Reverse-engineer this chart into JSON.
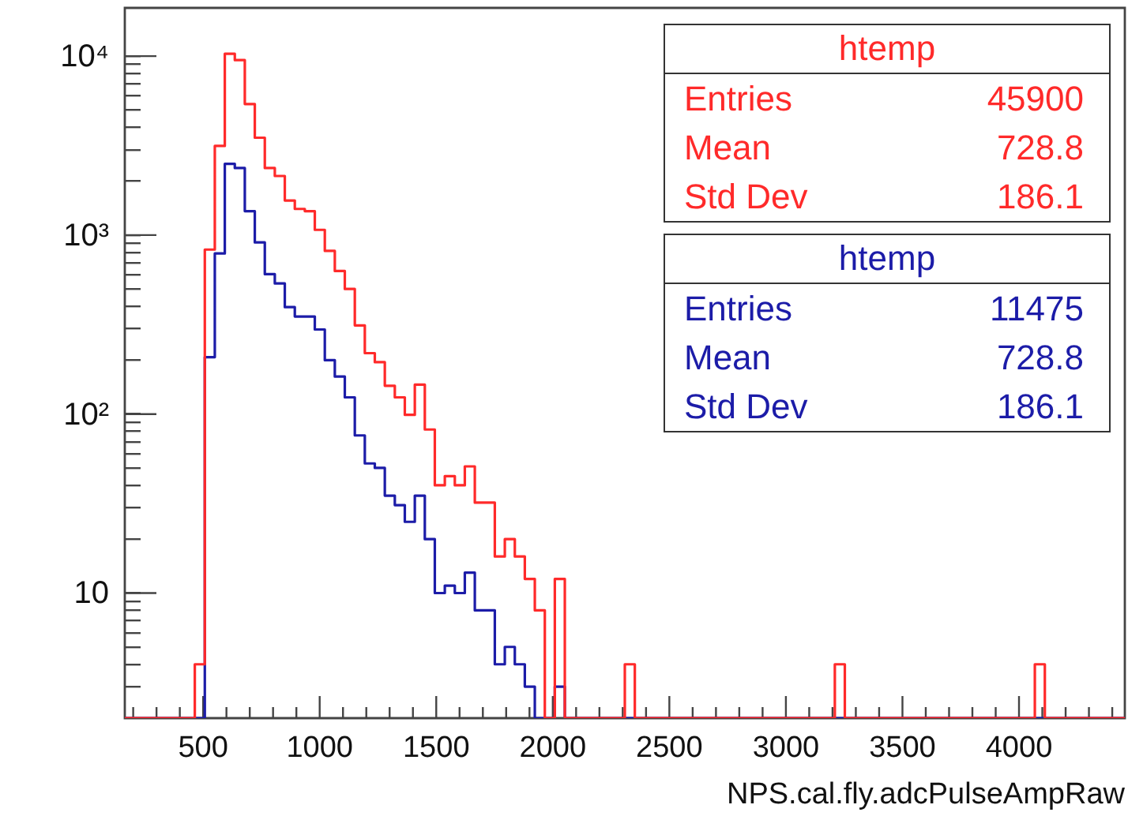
{
  "chart_data": {
    "type": "histogram",
    "xlabel": "NPS.cal.fly.adcPulseAmpRaw",
    "log": "y",
    "bins": [
      164,
      206.9,
      249.8,
      292.7,
      335.6,
      378.5,
      421.4,
      464.3,
      507.2,
      550.1,
      593,
      635.9,
      678.8,
      721.7,
      764.6,
      807.5,
      850.4,
      893.3,
      936.2,
      979.1,
      1022,
      1064.9,
      1107.8,
      1150.7,
      1193.6,
      1236.5,
      1279.4,
      1322.3,
      1365.2,
      1408.1,
      1451,
      1493.9,
      1536.8,
      1579.7,
      1622.6,
      1665.5,
      1708.4,
      1751.3,
      1794.2,
      1837.1,
      1880,
      1922.9,
      1965.8,
      2008.7,
      2051.6,
      2094.5,
      2137.4,
      2180.3,
      2223.2,
      2266.1,
      2309,
      2351.9,
      2394.8,
      2437.7,
      2480.6,
      2523.5,
      2566.4,
      2609.3,
      2652.2,
      2695.1,
      2738,
      2780.9,
      2823.8,
      2866.7,
      2909.6,
      2952.5,
      2995.4,
      3038.3,
      3081.2,
      3124.1,
      3167,
      3209.9,
      3252.8,
      3295.7,
      3338.6,
      3381.5,
      3424.4,
      3467.3,
      3510.2,
      3553.1,
      3596,
      3638.9,
      3681.8,
      3724.7,
      3767.6,
      3810.5,
      3853.4,
      3896.3,
      3939.2,
      3982.1,
      4025,
      4067.9,
      4110.8,
      4153.7,
      4196.6,
      4239.5,
      4282.4,
      4325.3,
      4368.2,
      4411.1,
      4454
    ],
    "series": [
      {
        "name": "htemp",
        "color": "#ff2a2a",
        "values": [
          null,
          null,
          null,
          null,
          null,
          null,
          null,
          4,
          830,
          3150,
          10300,
          9500,
          5400,
          3500,
          2370,
          2140,
          1560,
          1400,
          1360,
          1070,
          816,
          630,
          500,
          313,
          219,
          195,
          144,
          124,
          99,
          146,
          82,
          40,
          45,
          40,
          51,
          32,
          32,
          16,
          20,
          16,
          12,
          8,
          null,
          12,
          null,
          null,
          null,
          null,
          null,
          null,
          4,
          null,
          null,
          null,
          null,
          null,
          null,
          null,
          null,
          null,
          null,
          null,
          null,
          null,
          null,
          null,
          null,
          null,
          null,
          null,
          null,
          4,
          null,
          null,
          null,
          null,
          null,
          null,
          null,
          null,
          null,
          null,
          null,
          null,
          null,
          null,
          null,
          null,
          null,
          null,
          null,
          4,
          null,
          null,
          null,
          null,
          null,
          null,
          null,
          null
        ]
      },
      {
        "name": "htemp",
        "color": "#1c1ca8",
        "values": [
          null,
          null,
          null,
          null,
          null,
          null,
          null,
          null,
          208,
          790,
          2500,
          2370,
          1360,
          910,
          605,
          537,
          396,
          351,
          351,
          297,
          200,
          162,
          124,
          76,
          53,
          50,
          35,
          31,
          25,
          35,
          20,
          10,
          11,
          10,
          13,
          8,
          8,
          4,
          5,
          4,
          3,
          null,
          null,
          3,
          null,
          null,
          null,
          null,
          null,
          null,
          null,
          null,
          null,
          null,
          null,
          null,
          null,
          null,
          null,
          null,
          null,
          null,
          null,
          null,
          null,
          null,
          null,
          null,
          null,
          null,
          null,
          null,
          null,
          null,
          null,
          null,
          null,
          null,
          null,
          null,
          null,
          null,
          null,
          null,
          null,
          null,
          null,
          null,
          null,
          null,
          null,
          null,
          null,
          null,
          null,
          null,
          null,
          null,
          null,
          null
        ]
      }
    ],
    "xlim": [
      164,
      4454
    ],
    "xticks": [
      {
        "value": 200,
        "label": null
      },
      {
        "value": 300,
        "label": null
      },
      {
        "value": 400,
        "label": null
      },
      500,
      {
        "value": 600,
        "label": null
      },
      {
        "value": 700,
        "label": null
      },
      {
        "value": 800,
        "label": null
      },
      {
        "value": 900,
        "label": null
      },
      1000,
      {
        "value": 1100,
        "label": null
      },
      {
        "value": 1200,
        "label": null
      },
      {
        "value": 1300,
        "label": null
      },
      {
        "value": 1400,
        "label": null
      },
      1500,
      {
        "value": 1600,
        "label": null
      },
      {
        "value": 1700,
        "label": null
      },
      {
        "value": 1800,
        "label": null
      },
      {
        "value": 1900,
        "label": null
      },
      2000,
      {
        "value": 2100,
        "label": null
      },
      {
        "value": 2200,
        "label": null
      },
      {
        "value": 2300,
        "label": null
      },
      {
        "value": 2400,
        "label": null
      },
      2500,
      {
        "value": 2600,
        "label": null
      },
      {
        "value": 2700,
        "label": null
      },
      {
        "value": 2800,
        "label": null
      },
      {
        "value": 2900,
        "label": null
      },
      3000,
      {
        "value": 3100,
        "label": null
      },
      {
        "value": 3200,
        "label": null
      },
      {
        "value": 3300,
        "label": null
      },
      {
        "value": 3400,
        "label": null
      },
      3500,
      {
        "value": 3600,
        "label": null
      },
      {
        "value": 3700,
        "label": null
      },
      {
        "value": 3800,
        "label": null
      },
      {
        "value": 3900,
        "label": null
      },
      4000,
      {
        "value": 4100,
        "label": null
      },
      {
        "value": 4200,
        "label": null
      },
      {
        "value": 4300,
        "label": null
      },
      {
        "value": 4400,
        "label": null
      }
    ],
    "ylim": [
      2,
      18600
    ],
    "yticks": [
      {
        "value": 3,
        "label": null
      },
      {
        "value": 4,
        "label": null
      },
      {
        "value": 5,
        "label": null
      },
      {
        "value": 6,
        "label": null
      },
      {
        "value": 7,
        "label": null
      },
      {
        "value": 8,
        "label": null
      },
      {
        "value": 9,
        "label": null
      },
      10,
      {
        "value": 20,
        "label": null
      },
      {
        "value": 30,
        "label": null
      },
      {
        "value": 40,
        "label": null
      },
      {
        "value": 50,
        "label": null
      },
      {
        "value": 60,
        "label": null
      },
      {
        "value": 70,
        "label": null
      },
      {
        "value": 80,
        "label": null
      },
      {
        "value": 90,
        "label": null
      },
      {
        "value": 100,
        "label": "10²"
      },
      {
        "value": 200,
        "label": null
      },
      {
        "value": 300,
        "label": null
      },
      {
        "value": 400,
        "label": null
      },
      {
        "value": 500,
        "label": null
      },
      {
        "value": 600,
        "label": null
      },
      {
        "value": 700,
        "label": null
      },
      {
        "value": 800,
        "label": null
      },
      {
        "value": 900,
        "label": null
      },
      {
        "value": 1000,
        "label": "10³"
      },
      {
        "value": 2000,
        "label": null
      },
      {
        "value": 3000,
        "label": null
      },
      {
        "value": 4000,
        "label": null
      },
      {
        "value": 5000,
        "label": null
      },
      {
        "value": 6000,
        "label": null
      },
      {
        "value": 7000,
        "label": null
      },
      {
        "value": 8000,
        "label": null
      },
      {
        "value": 9000,
        "label": null
      },
      {
        "value": 10000,
        "label": "10⁴"
      }
    ],
    "annotations": [
      "Entries",
      "45900",
      "Mean",
      "728.8",
      "Std Dev",
      "186.1",
      "Entries",
      "11475",
      "Mean",
      "728.8",
      "Std Dev",
      "186.1"
    ]
  }
}
